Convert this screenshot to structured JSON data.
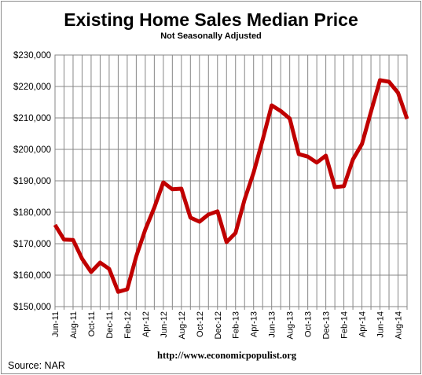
{
  "chart_data": {
    "type": "line",
    "title": "Existing Home Sales Median Price",
    "subtitle": "Not Seasonally Adjusted",
    "ylim": [
      150000,
      230000
    ],
    "yticks": [
      "$150,000",
      "$160,000",
      "$170,000",
      "$180,000",
      "$190,000",
      "$200,000",
      "$210,000",
      "$220,000",
      "$230,000"
    ],
    "ytick_values": [
      150000,
      160000,
      170000,
      180000,
      190000,
      200000,
      210000,
      220000,
      230000
    ],
    "x": [
      "Jun-11",
      "Jul-11",
      "Aug-11",
      "Sep-11",
      "Oct-11",
      "Nov-11",
      "Dec-11",
      "Jan-12",
      "Feb-12",
      "Mar-12",
      "Apr-12",
      "May-12",
      "Jun-12",
      "Jul-12",
      "Aug-12",
      "Sep-12",
      "Oct-12",
      "Nov-12",
      "Dec-12",
      "Jan-13",
      "Feb-13",
      "Mar-13",
      "Apr-13",
      "May-13",
      "Jun-13",
      "Jul-13",
      "Aug-13",
      "Sep-13",
      "Oct-13",
      "Nov-13",
      "Dec-13",
      "Jan-14",
      "Feb-14",
      "Mar-14",
      "Apr-14",
      "May-14",
      "Jun-14",
      "Jul-14",
      "Aug-14",
      "Sep-14"
    ],
    "xtick_labels": [
      "Jun-11",
      "Aug-11",
      "Oct-11",
      "Dec-11",
      "Feb-12",
      "Apr-12",
      "Jun-12",
      "Aug-12",
      "Oct-12",
      "Dec-12",
      "Feb-13",
      "Apr-13",
      "Jun-13",
      "Aug-13",
      "Oct-13",
      "Dec-13",
      "Feb-14",
      "Apr-14",
      "Jun-14",
      "Aug-14"
    ],
    "series": [
      {
        "values": [
          176000,
          171300,
          171200,
          165200,
          161000,
          164000,
          162000,
          154700,
          155500,
          166000,
          174500,
          181500,
          189500,
          187300,
          187500,
          178300,
          177000,
          179300,
          180300,
          170500,
          173400,
          184000,
          192600,
          203000,
          214000,
          212200,
          209800,
          198500,
          197700,
          195800,
          198000,
          188000,
          188300,
          196800,
          201700,
          212000,
          222000,
          221500,
          218000,
          209700
        ]
      }
    ],
    "line_color": "#c00000",
    "grid": true,
    "legend": "none"
  },
  "footer": {
    "source": "Source:  NAR",
    "url": "http://www.economicpopulist.org"
  }
}
